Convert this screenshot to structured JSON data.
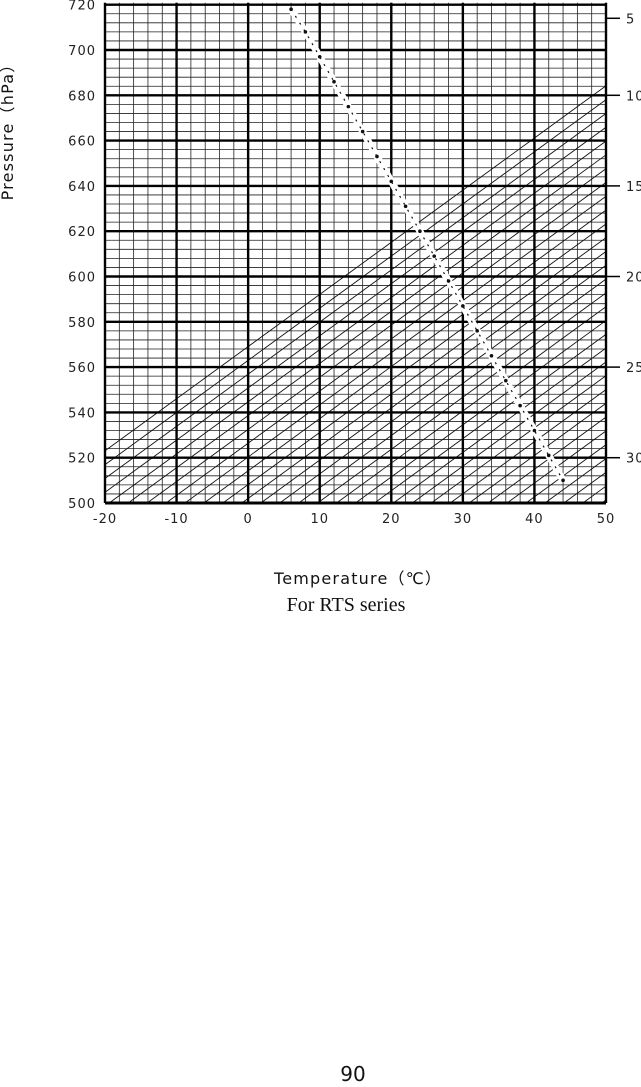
{
  "caption": "For RTS series",
  "page_number": "90",
  "chart_data": {
    "type": "line",
    "title": "",
    "xlabel": "Temperature（℃）",
    "ylabel": "Pressure（hPa）",
    "xlim": [
      -20,
      50
    ],
    "ylim": [
      500,
      720
    ],
    "x_ticks": [
      "-20",
      "-10",
      "0",
      "10",
      "20",
      "30",
      "40",
      "50"
    ],
    "y_ticks": [
      "500",
      "520",
      "540",
      "560",
      "580",
      "600",
      "620",
      "640",
      "660",
      "680",
      "700",
      "720"
    ],
    "right_ticks": [
      "5",
      "10",
      "15",
      "20",
      "25",
      "30"
    ],
    "right_tick_pressures": [
      714,
      680,
      640,
      600,
      560,
      520
    ],
    "grid": true,
    "minor_x_step": 2,
    "minor_y_step": 4,
    "correction_curve": {
      "x": [
        6,
        8,
        10,
        12,
        14,
        16,
        18,
        20,
        22,
        24,
        26,
        28,
        30,
        32,
        34,
        36,
        38,
        40,
        42,
        44
      ],
      "y": [
        718,
        708,
        697,
        686,
        675,
        664,
        653,
        642,
        631,
        620,
        609,
        598,
        587,
        576,
        565,
        554,
        543,
        532,
        521,
        510
      ]
    },
    "diagonal_lines": {
      "count": 34,
      "x_start": -30,
      "x_end": 60
    }
  }
}
